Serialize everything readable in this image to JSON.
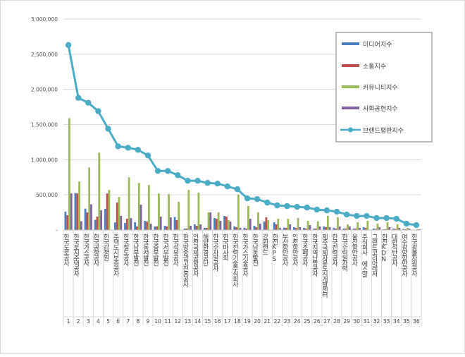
{
  "chart_data": {
    "type": "bar",
    "title": "",
    "xlabel": "",
    "ylabel": "",
    "ylim": [
      0,
      3000000
    ],
    "yticks": [
      {
        "value": 0,
        "label": "-"
      },
      {
        "value": 500000,
        "label": "500,000"
      },
      {
        "value": 1000000,
        "label": "1,000,000"
      },
      {
        "value": 1500000,
        "label": "1,500,000"
      },
      {
        "value": 2000000,
        "label": "2,000,000"
      },
      {
        "value": 2500000,
        "label": "2,500,000"
      },
      {
        "value": 3000000,
        "label": "3,000,000"
      }
    ],
    "grid": true,
    "legend_position": "top-right",
    "categories": [
      "한국도로공사",
      "한국토지주택공사",
      "한국가스공사",
      "한국공항공사",
      "한국감정원",
      "주택도시보증공사",
      "한국철도공사",
      "한국남부발전",
      "한국동서발전",
      "한국중부발전",
      "한국서부발전",
      "한국석유공사",
      "한국방송광고진흥공사",
      "인천국제공항공사",
      "해양환경공단",
      "한국수자원공사",
      "한국마사회",
      "한국전력기술주식회사",
      "한국가스기술공사",
      "한국남동발전",
      "강원랜드",
      "한전KPS",
      "부산항만공사",
      "인천항만공사",
      "한국조폐공사",
      "한국지역난방공사",
      "제주국제자유도시개발센터",
      "한국전력공사",
      "한국수력원자력",
      "울산항만공사",
      "주식회사 에스알",
      "그랜드코리아레저",
      "한전KDN",
      "대한석탄공사",
      "여수광양항만공사",
      "한국광물자원공사"
    ],
    "rank_labels": [
      "1",
      "2",
      "3",
      "4",
      "5",
      "6",
      "7",
      "8",
      "9",
      "10",
      "11",
      "12",
      "13",
      "14",
      "15",
      "16",
      "17",
      "18",
      "19",
      "20",
      "21",
      "22",
      "23",
      "24",
      "25",
      "26",
      "27",
      "28",
      "29",
      "30",
      "31",
      "32",
      "33",
      "34",
      "35",
      "36"
    ],
    "series": [
      {
        "name": "미디어지수",
        "kind": "bar",
        "color": "#4a7fc1",
        "values": [
          260000,
          525000,
          305000,
          145000,
          300000,
          108000,
          100000,
          110000,
          130000,
          50000,
          60000,
          185000,
          20000,
          80000,
          30000,
          170000,
          200000,
          50000,
          30000,
          60000,
          120000,
          110000,
          35000,
          40000,
          30000,
          20000,
          50000,
          30000,
          20000,
          20000,
          40000,
          20000,
          10000,
          20000,
          15000,
          5000
        ]
      },
      {
        "name": "소통지수",
        "kind": "bar",
        "color": "#c0504d",
        "values": [
          210000,
          520000,
          250000,
          190000,
          520000,
          390000,
          160000,
          50000,
          120000,
          50000,
          50000,
          140000,
          20000,
          60000,
          30000,
          160000,
          190000,
          40000,
          20000,
          40000,
          180000,
          80000,
          30000,
          30000,
          20000,
          20000,
          40000,
          20000,
          20000,
          20000,
          30000,
          15000,
          10000,
          15000,
          10000,
          5000
        ]
      },
      {
        "name": "커뮤니티지수",
        "kind": "bar",
        "color": "#9bbb59",
        "values": [
          1590000,
          690000,
          890000,
          1100000,
          570000,
          470000,
          750000,
          670000,
          640000,
          520000,
          510000,
          400000,
          570000,
          530000,
          250000,
          250000,
          140000,
          500000,
          340000,
          250000,
          140000,
          160000,
          160000,
          170000,
          130000,
          120000,
          200000,
          180000,
          80000,
          110000,
          130000,
          90000,
          110000,
          80000,
          30000,
          10000
        ]
      },
      {
        "name": "사회공헌지수",
        "kind": "bar",
        "color": "#8064a2",
        "values": [
          520000,
          125000,
          365000,
          280000,
          0,
          200000,
          170000,
          360000,
          90000,
          190000,
          180000,
          0,
          60000,
          80000,
          250000,
          130000,
          120000,
          30000,
          160000,
          90000,
          0,
          30000,
          80000,
          40000,
          70000,
          50000,
          40000,
          50000,
          50000,
          30000,
          0,
          40000,
          40000,
          30000,
          20000,
          10000
        ]
      },
      {
        "name": "브랜드평판지수",
        "kind": "line",
        "color": "#4bacc6",
        "values": [
          2630000,
          1880000,
          1810000,
          1690000,
          1440000,
          1190000,
          1170000,
          1140000,
          1060000,
          840000,
          840000,
          780000,
          700000,
          700000,
          670000,
          660000,
          620000,
          580000,
          450000,
          440000,
          390000,
          350000,
          340000,
          330000,
          320000,
          290000,
          280000,
          260000,
          220000,
          200000,
          200000,
          170000,
          170000,
          160000,
          90000,
          70000
        ]
      }
    ]
  }
}
